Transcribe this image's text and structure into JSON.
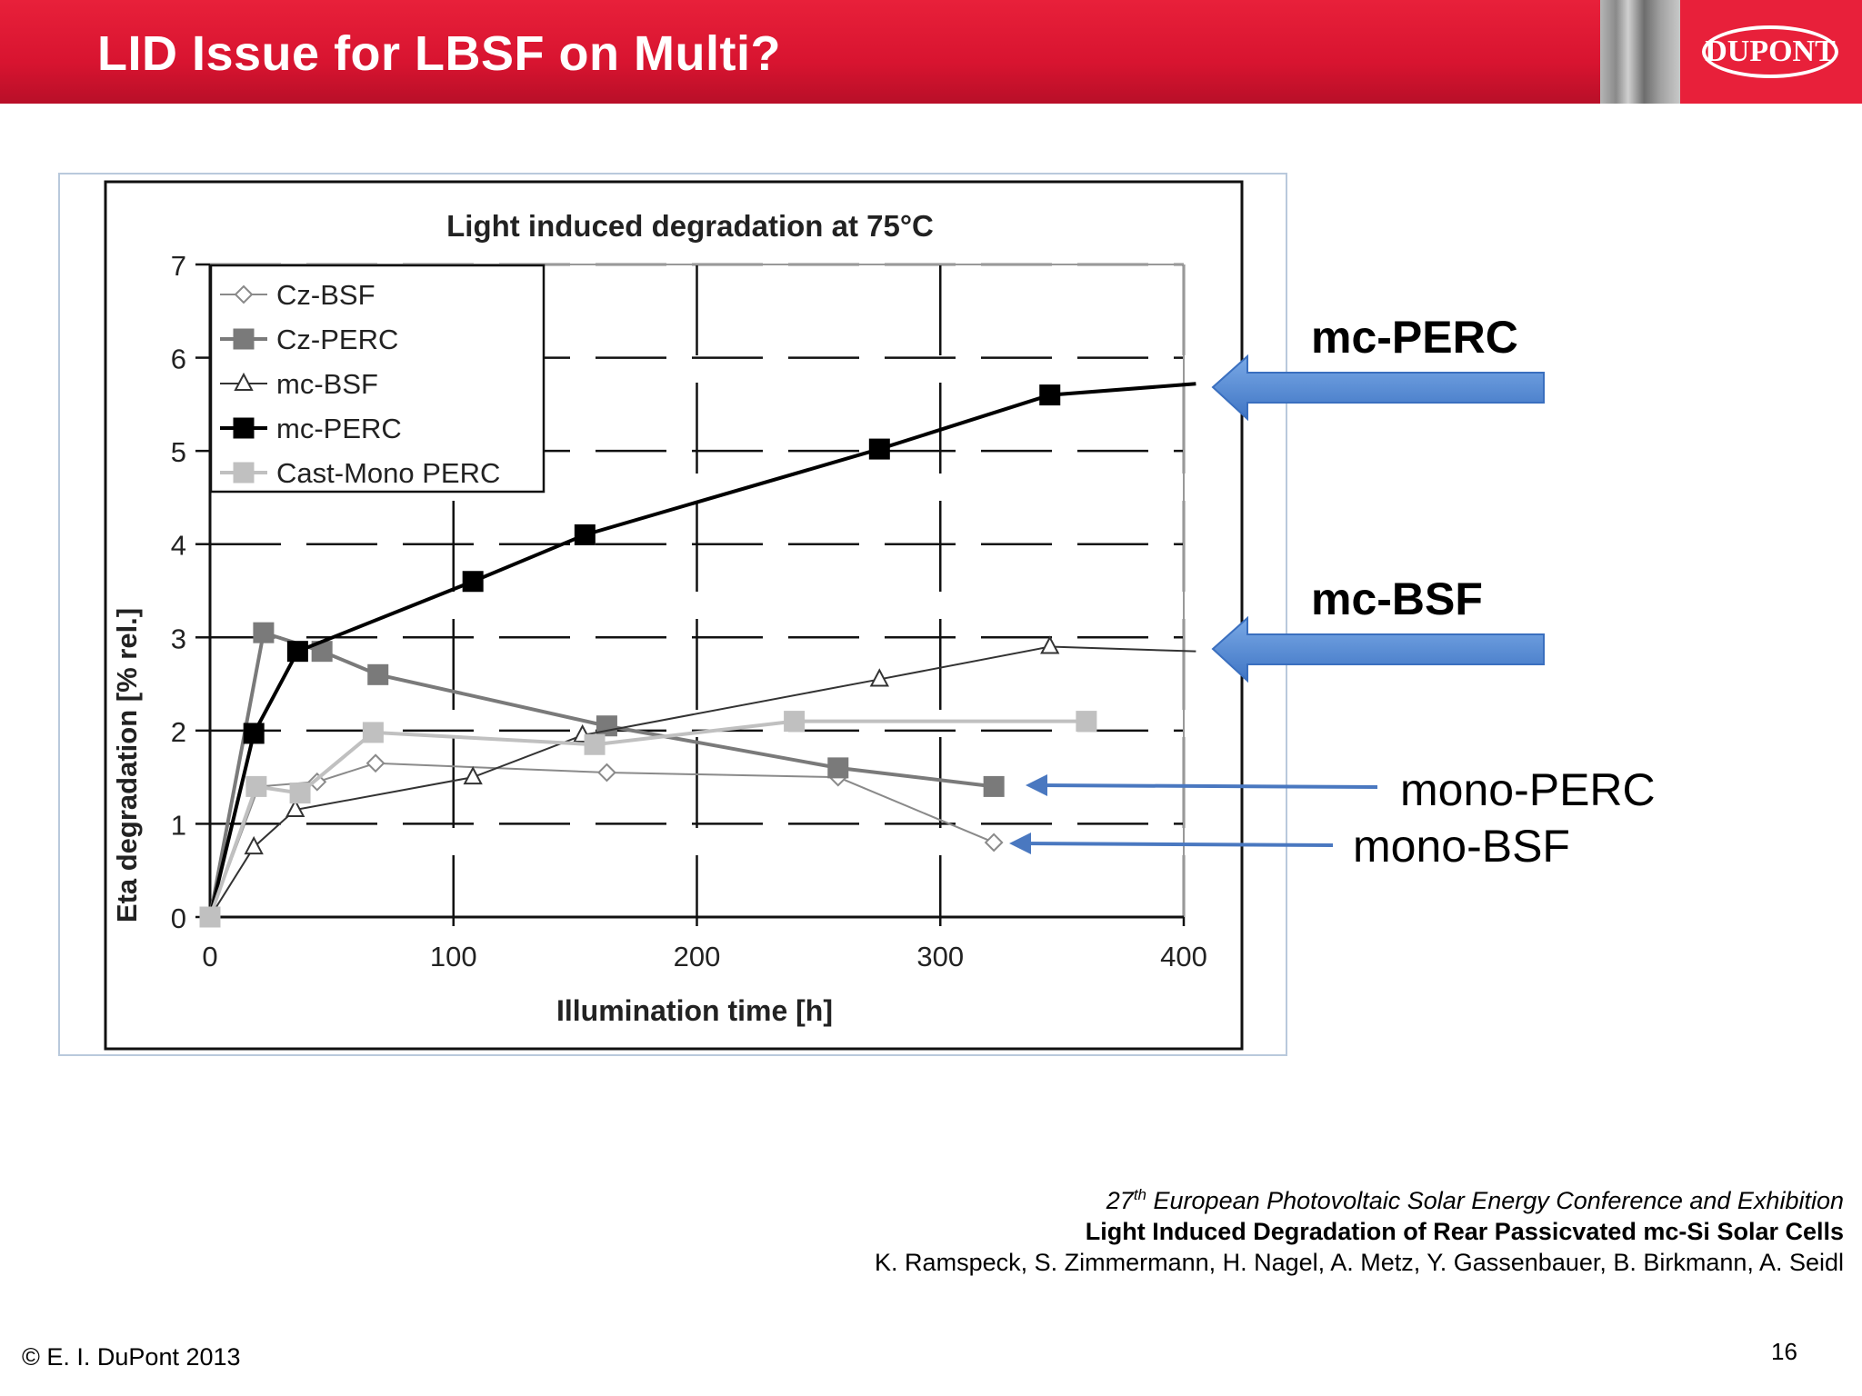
{
  "slide": {
    "title": "LID Issue for LBSF on Multi?",
    "logo_text": "DUPONT",
    "footer_copyright": "© E. I. DuPont 2013",
    "page_number": "16",
    "citation": {
      "line1_super": "th",
      "line1_prefix": "27",
      "line1_rest": " European Photovoltaic Solar Energy Conference and Exhibition",
      "line2": "Light Induced Degradation of Rear Passicvated mc-Si Solar Cells",
      "line3": "K. Ramspeck, S. Zimmermann, H. Nagel, A. Metz, Y. Gassenbauer, B. Birkmann, A. Seidl"
    }
  },
  "annotations": [
    {
      "label": "mc-PERC",
      "style": "bold"
    },
    {
      "label": "mc-BSF",
      "style": "bold"
    },
    {
      "label": "mono-PERC",
      "style": "regular"
    },
    {
      "label": "mono-BSF",
      "style": "regular"
    }
  ],
  "colors": {
    "header_red": "#d81430",
    "arrow_blue": "#5b8fd6",
    "thin_arrow_blue": "#4a78c0"
  },
  "chart_data": {
    "type": "line",
    "title": "Light induced degradation at 75°C",
    "xlabel": "Illumination time [h]",
    "ylabel": "Eta degradation [% rel.]",
    "xlim": [
      0,
      400
    ],
    "ylim": [
      0,
      7
    ],
    "xticks": [
      "0",
      "100",
      "200",
      "300",
      "400"
    ],
    "yticks": [
      "0",
      "1",
      "2",
      "3",
      "4",
      "5",
      "6",
      "7"
    ],
    "grid": true,
    "legend_position": "top-left",
    "series": [
      {
        "name": "Cz-BSF",
        "marker": "diamond-open",
        "color": "#8a8a8a",
        "x": [
          0,
          20,
          44,
          68,
          163,
          258,
          322
        ],
        "y": [
          0,
          1.4,
          1.45,
          1.65,
          1.55,
          1.5,
          0.8
        ]
      },
      {
        "name": "Cz-PERC",
        "marker": "square-filled",
        "color": "#7a7a7a",
        "x": [
          0,
          22,
          46,
          69,
          163,
          258,
          322
        ],
        "y": [
          0,
          3.05,
          2.85,
          2.6,
          2.05,
          1.6,
          1.4
        ]
      },
      {
        "name": "mc-BSF",
        "marker": "triangle-open",
        "color": "#333333",
        "x": [
          0,
          18,
          35,
          108,
          153,
          275,
          345,
          405
        ],
        "y": [
          0,
          0.75,
          1.15,
          1.5,
          1.95,
          2.55,
          2.9,
          2.85
        ]
      },
      {
        "name": "mc-PERC",
        "marker": "square-filled",
        "color": "#000000",
        "x": [
          0,
          18,
          36,
          108,
          154,
          275,
          345,
          405
        ],
        "y": [
          0,
          1.97,
          2.85,
          3.6,
          4.1,
          5.02,
          5.6,
          5.72
        ]
      },
      {
        "name": "Cast-Mono PERC",
        "marker": "square-filled",
        "color": "#c0c0c0",
        "x": [
          0,
          19,
          37,
          67,
          158,
          240,
          360
        ],
        "y": [
          0,
          1.4,
          1.33,
          1.98,
          1.85,
          2.1,
          2.1
        ]
      }
    ]
  }
}
